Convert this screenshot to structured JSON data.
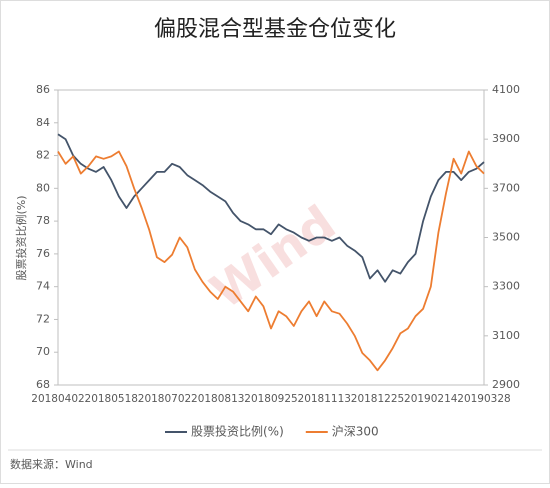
{
  "chart_data": {
    "type": "line",
    "title": "偏股混合型基金仓位变化",
    "y_label": "股票投资比例(%)",
    "source": "数据来源：Wind",
    "watermark": "Wind",
    "categories": [
      "20180402",
      null,
      null,
      null,
      null,
      null,
      null,
      "20180518",
      null,
      null,
      null,
      null,
      null,
      null,
      "20180702",
      null,
      null,
      null,
      null,
      null,
      null,
      "20180813",
      null,
      null,
      null,
      null,
      null,
      null,
      "20180925",
      null,
      null,
      null,
      null,
      null,
      null,
      "20181113",
      null,
      null,
      null,
      null,
      null,
      null,
      "20181225",
      null,
      null,
      null,
      null,
      null,
      null,
      "20190214",
      null,
      null,
      null,
      null,
      null,
      null,
      "20190328"
    ],
    "series": [
      {
        "name": "股票投资比例(%)",
        "color": "#44546a",
        "axis": "y",
        "values": [
          83.3,
          83,
          82,
          81.5,
          81.2,
          81,
          81.3,
          80.5,
          79.5,
          78.8,
          79.5,
          80,
          80.5,
          81,
          81,
          81.5,
          81.3,
          80.8,
          80.5,
          80.2,
          79.8,
          79.5,
          79.2,
          78.5,
          78,
          77.8,
          77.5,
          77.5,
          77.2,
          77.8,
          77.5,
          77.3,
          77,
          76.8,
          77,
          77,
          76.8,
          77,
          76.5,
          76.2,
          75.8,
          74.5,
          75,
          74.3,
          75,
          74.8,
          75.5,
          76,
          78,
          79.5,
          80.5,
          81,
          81,
          80.5,
          81,
          81.2,
          81.6
        ]
      },
      {
        "name": "沪深300",
        "color": "#ed7d31",
        "axis": "y2",
        "values": [
          3850,
          3800,
          3830,
          3760,
          3790,
          3830,
          3820,
          3830,
          3850,
          3790,
          3700,
          3620,
          3530,
          3420,
          3400,
          3430,
          3500,
          3460,
          3370,
          3320,
          3280,
          3250,
          3300,
          3280,
          3240,
          3200,
          3260,
          3220,
          3130,
          3200,
          3180,
          3140,
          3200,
          3240,
          3180,
          3240,
          3200,
          3190,
          3150,
          3100,
          3030,
          3000,
          2960,
          3000,
          3050,
          3110,
          3130,
          3180,
          3210,
          3300,
          3520,
          3680,
          3820,
          3760,
          3850,
          3790,
          3760
        ]
      }
    ],
    "ylim": [
      68,
      86
    ],
    "yticks": [
      68,
      70,
      72,
      74,
      76,
      78,
      80,
      82,
      84,
      86
    ],
    "y2lim": [
      2900,
      4100
    ],
    "y2ticks": [
      2900,
      3100,
      3300,
      3500,
      3700,
      3900,
      4100
    ],
    "legend": "bottom"
  }
}
